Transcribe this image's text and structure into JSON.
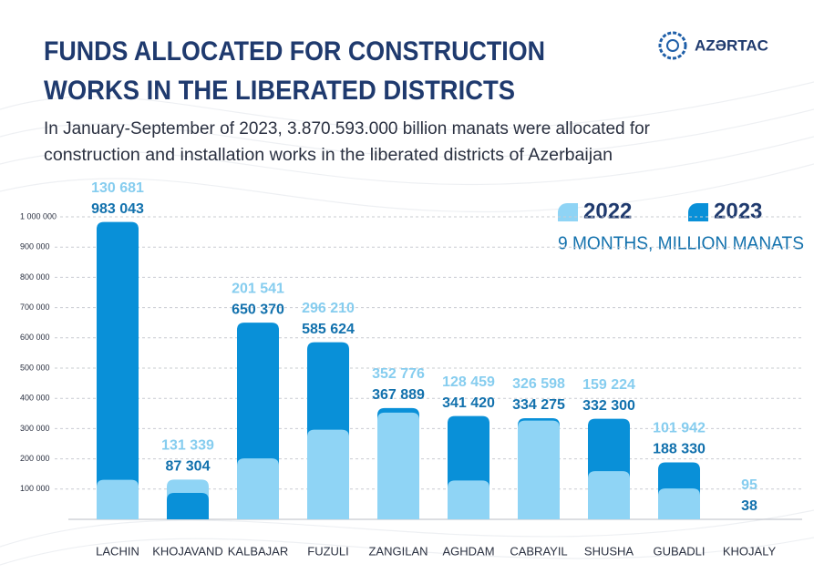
{
  "brand": "AZƏRTAC",
  "chart_data": {
    "type": "bar",
    "title": [
      "FUNDS ALLOCATED FOR CONSTRUCTION",
      "WORKS IN THE LIBERATED DISTRICTS"
    ],
    "subtitle": [
      "In January-September of 2023, 3.870.593.000 billion manats were allocated for",
      "construction and installation works in the liberated districts of Azerbaijan"
    ],
    "unit_label": "9 MONTHS, MILLION MANATS",
    "categories": [
      "LACHIN",
      "KHOJAVAND",
      "KALBAJAR",
      "FUZULI",
      "ZANGILAN",
      "AGHDAM",
      "CABRAYIL",
      "SHUSHA",
      "GUBADLI",
      "KHOJALY"
    ],
    "series": [
      {
        "name": "2022",
        "color": "#8fd4f5",
        "label_color": "#86cdef",
        "values": [
          130681,
          131339,
          201541,
          296210,
          352776,
          128459,
          326598,
          159224,
          101942,
          95
        ],
        "value_labels": [
          "130 681",
          "131 339",
          "201 541",
          "296 210",
          "352 776",
          "128 459",
          "326 598",
          "159 224",
          "101 942",
          "95"
        ]
      },
      {
        "name": "2023",
        "color": "#0990d8",
        "label_color": "#1271ad",
        "values": [
          983043,
          87304,
          650370,
          585624,
          367889,
          341420,
          334275,
          332300,
          188330,
          38
        ],
        "value_labels": [
          "983 043",
          "87 304",
          "650 370",
          "585 624",
          "367 889",
          "341 420",
          "334 275",
          "332 300",
          "188 330",
          "38"
        ]
      }
    ],
    "ylim": [
      0,
      1000000
    ],
    "yticks": [
      {
        "value": 100000,
        "label": "100 000"
      },
      {
        "value": 200000,
        "label": "200 000"
      },
      {
        "value": 300000,
        "label": "300 000"
      },
      {
        "value": 400000,
        "label": "400 000"
      },
      {
        "value": 500000,
        "label": "500 000"
      },
      {
        "value": 600000,
        "label": "600 000"
      },
      {
        "value": 700000,
        "label": "700 000"
      },
      {
        "value": 800000,
        "label": "800 000"
      },
      {
        "value": 900000,
        "label": "900 000"
      },
      {
        "value": 1000000,
        "label": "1 000 000"
      }
    ],
    "grid": true
  }
}
